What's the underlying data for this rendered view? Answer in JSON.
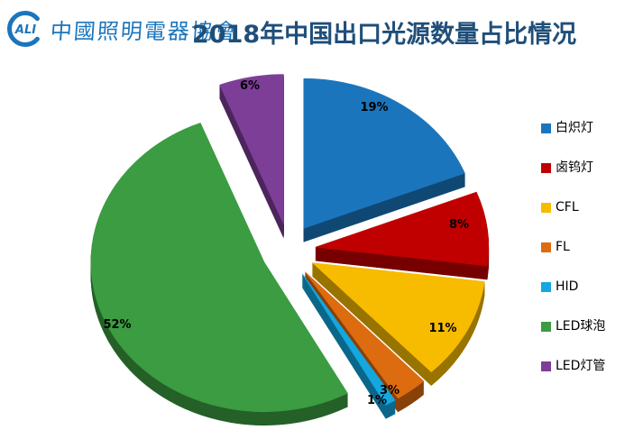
{
  "header": {
    "logo": {
      "emblem_text": "ALI",
      "org_name": "中國照明電器協會",
      "color": "#1b75bc"
    },
    "title": "2018年中国出口光源数量占比情况",
    "title_color": "#1f4e79"
  },
  "chart_data": {
    "type": "pie",
    "style": "3d-exploded",
    "title": "2018年中国出口光源数量占比情况",
    "unit": "%",
    "start_angle_deg": 0,
    "direction": "clockwise",
    "legend_position": "right",
    "series": [
      {
        "label": "白炽灯",
        "value": 19,
        "data_label": "19%",
        "color": "#1b75bc"
      },
      {
        "label": "卤钨灯",
        "value": 8,
        "data_label": "8%",
        "color": "#c00000"
      },
      {
        "label": "CFL",
        "value": 11,
        "data_label": "11%",
        "color": "#f7bb00"
      },
      {
        "label": "FL",
        "value": 3,
        "data_label": "3%",
        "color": "#dd6b10"
      },
      {
        "label": "HID",
        "value": 1,
        "data_label": "1%",
        "color": "#14a7e0"
      },
      {
        "label": "LED球泡",
        "value": 52,
        "data_label": "52%",
        "color": "#3b9c41"
      },
      {
        "label": "LED灯管",
        "value": 6,
        "data_label": "6%",
        "color": "#7d3e98"
      }
    ]
  }
}
